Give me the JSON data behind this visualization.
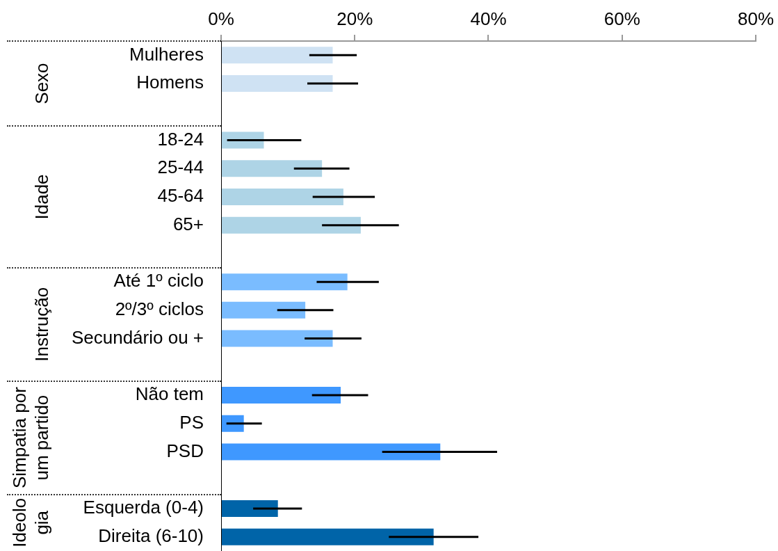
{
  "chart_data": {
    "type": "bar",
    "orientation": "horizontal",
    "categories": [
      "Mulheres",
      "Homens",
      null,
      "18-24",
      "25-44",
      "45-64",
      "65+",
      null,
      "Até 1º ciclo",
      "2º/3º ciclos",
      "Secundário ou +",
      null,
      "Não tem",
      "PS",
      "PSD",
      null,
      "Esquerda (0-4)",
      "Direita (6-10)"
    ],
    "values": [
      16.7,
      16.7,
      null,
      6.4,
      15.1,
      18.3,
      20.9,
      null,
      18.9,
      12.6,
      16.7,
      null,
      17.9,
      3.4,
      32.8,
      null,
      8.5,
      31.8
    ],
    "colors": [
      "#cfe2f3",
      "#cfe2f3",
      null,
      "#aed4e6",
      "#aed4e6",
      "#aed4e6",
      "#aed4e6",
      null,
      "#7abcff",
      "#7abcff",
      "#7abcff",
      null,
      "#3f98ff",
      "#3f98ff",
      "#3f98ff",
      null,
      "#0064a8",
      "#0064a8"
    ],
    "errors": [
      [
        13.2,
        20.3
      ],
      [
        12.9,
        20.5
      ],
      null,
      [
        0.9,
        12.0
      ],
      [
        10.9,
        19.2
      ],
      [
        13.7,
        23.0
      ],
      [
        15.1,
        26.6
      ],
      null,
      [
        14.3,
        23.6
      ],
      [
        8.4,
        16.8
      ],
      [
        12.5,
        21.0
      ],
      null,
      [
        13.6,
        22.0
      ],
      [
        0.8,
        6.1
      ],
      [
        24.1,
        41.3
      ],
      null,
      [
        4.8,
        12.1
      ],
      [
        25.1,
        38.5
      ]
    ],
    "xlim": [
      0,
      80
    ],
    "xticks": [
      {
        "value": 0,
        "label": "0%"
      },
      {
        "value": 20,
        "label": "20%"
      },
      {
        "value": 40,
        "label": "40%"
      },
      {
        "value": 60,
        "label": "60%"
      },
      {
        "value": 80,
        "label": "80%"
      }
    ],
    "annotations": [
      "Sexo",
      "Idade",
      "Instrução",
      "Simpatia por um partido",
      "Ideologia"
    ]
  }
}
